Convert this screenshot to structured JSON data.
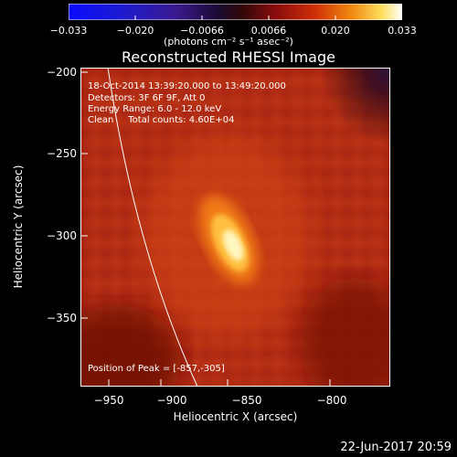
{
  "colorbar": {
    "ticks": [
      "−0.033",
      "−0.020",
      "−0.0066",
      "0.0066",
      "0.020",
      "0.033"
    ],
    "units": "(photons cm⁻² s⁻¹ asec⁻²)",
    "min": -0.033,
    "max": 0.033
  },
  "title": "Reconstructed RHESSI Image",
  "annotation": {
    "line1": "18-Oct-2014 13:39:20.000 to 13:49:20.000",
    "line2": "Detectors: 3F 6F 9F, Att 0",
    "line3": "Energy Range: 6.0 - 12.0 keV",
    "line4": "Clean     Total counts: 4.60E+04",
    "peak": "Position of Peak = [-857,-305]"
  },
  "axes": {
    "xlabel": "Heliocentric X (arcsec)",
    "ylabel": "Heliocentric Y (arcsec)",
    "xticks": [
      "−950",
      "−900",
      "−850",
      "−800"
    ],
    "yticks": [
      "−200",
      "−250",
      "−300",
      "−350"
    ],
    "xrange": [
      -962,
      -832
    ],
    "yrange": [
      -391,
      -200
    ]
  },
  "peak": {
    "x": -857,
    "y": -305
  },
  "date": "22-Jun-2017 20:59"
}
